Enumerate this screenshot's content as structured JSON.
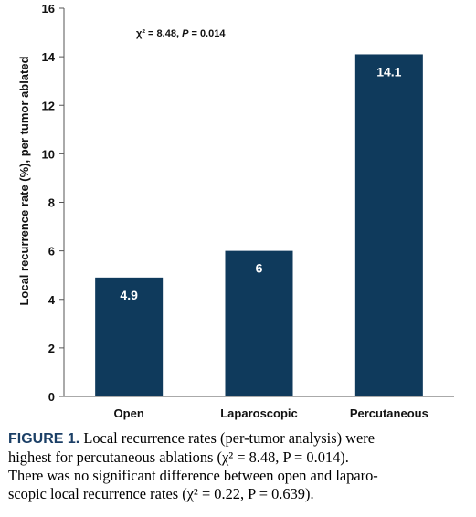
{
  "chart_data": {
    "type": "bar",
    "categories": [
      "Open",
      "Laparoscopic",
      "Percutaneous"
    ],
    "values": [
      4.9,
      6,
      14.1
    ],
    "value_labels": [
      "4.9",
      "6",
      "14.1"
    ],
    "ylabel": "Local recurrence rate (%), per tumor ablated",
    "xlabel": "",
    "ylim": [
      0,
      16
    ],
    "yticks": [
      "0",
      "2",
      "4",
      "6",
      "8",
      "10",
      "12",
      "14",
      "16"
    ],
    "grid": false,
    "bar_color": "#0f3a5c",
    "annotation": {
      "stat": "χ² = 8.48, ",
      "p_symbol": "P",
      "p_value": " = 0.014"
    }
  },
  "caption": {
    "label": "FIGURE 1.",
    "lines": [
      " Local recurrence rates (per-tumor analysis) were",
      "highest for percutaneous ablations (χ² = 8.48, P = 0.014).",
      "There was no significant difference between open and laparo-",
      "scopic local recurrence rates (χ² = 0.22, P = 0.639)."
    ]
  }
}
